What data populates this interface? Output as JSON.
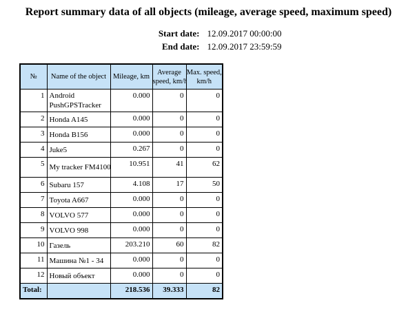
{
  "title": "Report summary data of all objects (mileage, average speed, maximum speed)",
  "dates": {
    "start_label": "Start date:",
    "start_value": "12.09.2017 00:00:00",
    "end_label": "End date:",
    "end_value": "12.09.2017 23:59:59"
  },
  "table": {
    "columns": [
      {
        "id": "number",
        "label": "№",
        "line1": "№"
      },
      {
        "id": "name",
        "label": "Name of the object",
        "line1": "Name of the object"
      },
      {
        "id": "mileage",
        "label": "Mileage, km",
        "line1": "Mileage, km"
      },
      {
        "id": "avg_speed",
        "label": "Average speed, km/h",
        "line1": "Average",
        "line2": "speed, km/h"
      },
      {
        "id": "max_speed",
        "label": "Max. speed, km/h",
        "line1": "Max. speed,",
        "line2": "km/h"
      }
    ],
    "rows": [
      {
        "num": "1",
        "name": "Android PushGPSTracker",
        "mileage": "0.000",
        "avg": "0",
        "max": "0"
      },
      {
        "num": "2",
        "name": "Honda A145",
        "mileage": "0.000",
        "avg": "0",
        "max": "0"
      },
      {
        "num": "3",
        "name": "Honda B156",
        "mileage": "0.000",
        "avg": "0",
        "max": "0"
      },
      {
        "num": "4",
        "name": "Juke5",
        "mileage": "0.267",
        "avg": "0",
        "max": "0"
      },
      {
        "num": "5",
        "name": "My tracker FM4100",
        "mileage": "10.951",
        "avg": "41",
        "max": "62"
      },
      {
        "num": "6",
        "name": "Subaru 157",
        "mileage": "4.108",
        "avg": "17",
        "max": "50"
      },
      {
        "num": "7",
        "name": "Toyota A667",
        "mileage": "0.000",
        "avg": "0",
        "max": "0"
      },
      {
        "num": "8",
        "name": "VOLVO 577",
        "mileage": "0.000",
        "avg": "0",
        "max": "0"
      },
      {
        "num": "9",
        "name": "VOLVO 998",
        "mileage": "0.000",
        "avg": "0",
        "max": "0"
      },
      {
        "num": "10",
        "name": "Газель",
        "mileage": "203.210",
        "avg": "60",
        "max": "82"
      },
      {
        "num": "11",
        "name": "Машина №1 - 34",
        "mileage": "0.000",
        "avg": "0",
        "max": "0"
      },
      {
        "num": "12",
        "name": "Новый объект",
        "mileage": "0.000",
        "avg": "0",
        "max": "0"
      }
    ],
    "total": {
      "label": "Total:",
      "mileage": "218.536",
      "avg": "39.333",
      "max": "82"
    }
  },
  "colors": {
    "header_bg": "#c6e2f7",
    "border_color": "#000000",
    "text_color": "#000000"
  }
}
